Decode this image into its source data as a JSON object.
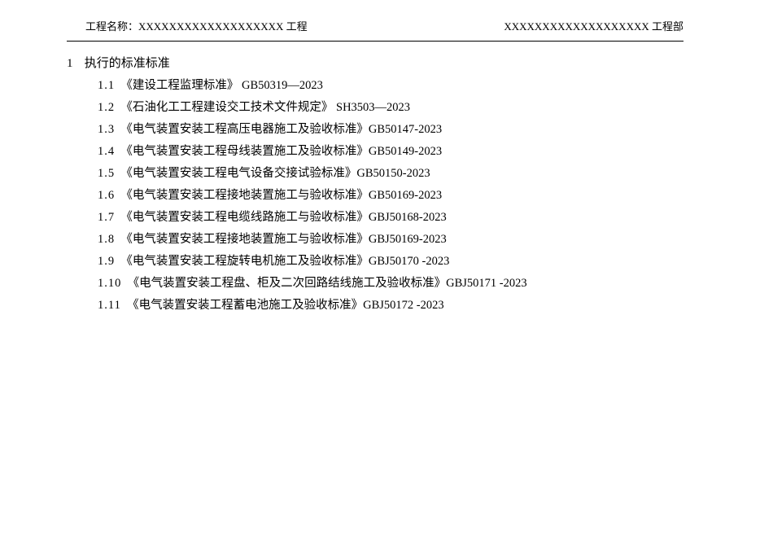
{
  "header": {
    "left_label": "工程名称：",
    "left_value": "XXXXXXXXXXXXXXXXXXX 工程",
    "right_value": "XXXXXXXXXXXXXXXXXXX 工程部"
  },
  "section": {
    "number": "1",
    "title": "执行的标准标准"
  },
  "items": [
    {
      "num": "1.1",
      "text": "《建设工程监理标准》 GB50319—2023"
    },
    {
      "num": "1.2",
      "text": "《石油化工工程建设交工技术文件规定》 SH3503—2023"
    },
    {
      "num": "1.3",
      "text": "《电气装置安装工程高压电器施工及验收标准》GB50147-2023"
    },
    {
      "num": "1.4",
      "text": "《电气装置安装工程母线装置施工及验收标准》GB50149-2023"
    },
    {
      "num": "1.5",
      "text": "《电气装置安装工程电气设备交接试验标准》GB50150-2023"
    },
    {
      "num": "1.6",
      "text": "《电气装置安装工程接地装置施工与验收标准》GB50169-2023"
    },
    {
      "num": "1.7",
      "text": "《电气装置安装工程电缆线路施工与验收标准》GBJ50168-2023"
    },
    {
      "num": "1.8",
      "text": "《电气装置安装工程接地装置施工与验收标准》GBJ50169-2023"
    },
    {
      "num": "1.9",
      "text": "《电气装置安装工程旋转电机施工及验收标准》GBJ50170 -2023"
    },
    {
      "num": "1.10",
      "text": "《电气装置安装工程盘、柜及二次回路结线施工及验收标准》GBJ50171 -2023"
    },
    {
      "num": "1.11",
      "text": "《电气装置安装工程蓄电池施工及验收标准》GBJ50172 -2023"
    }
  ],
  "style": {
    "text_color": "#000000",
    "background_color": "#ffffff",
    "divider_color": "#000000",
    "body_font_size": 14.5,
    "header_font_size": 13,
    "section_font_size": 15,
    "line_height": 27
  }
}
